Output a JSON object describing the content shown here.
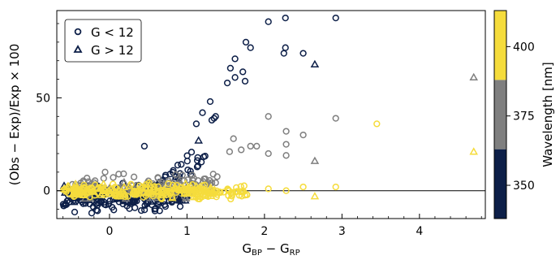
{
  "chart_data": {
    "type": "scatter",
    "xlabel": "G",
    "xlabel_parts": {
      "a": "BP",
      "minus": " − G",
      "b": "RP"
    },
    "ylabel": "(Obs − Exp)/Exp × 100",
    "xlim": [
      -0.68,
      4.85
    ],
    "ylim": [
      -15,
      97
    ],
    "xticks": [
      0,
      1,
      2,
      3,
      4
    ],
    "yticks": [
      0,
      50
    ],
    "hline": 0,
    "grid": false,
    "legend_position": "top-left",
    "series": [
      {
        "name": "G < 12",
        "marker": "circle"
      },
      {
        "name": "G > 12",
        "marker": "triangle"
      }
    ],
    "colorbar": {
      "label": "Wavelength [nm]",
      "bands": [
        {
          "from": 338,
          "to": 363,
          "color": "#0d1f48"
        },
        {
          "from": 363,
          "to": 388,
          "color": "#7f7f7f"
        },
        {
          "from": 388,
          "to": 413,
          "color": "#f5dc3c"
        }
      ],
      "range": [
        338,
        413
      ],
      "ticks": [
        350,
        375,
        400
      ]
    },
    "highlight_points": [
      {
        "x": 2.05,
        "y": 91,
        "marker": "circle",
        "band": 0
      },
      {
        "x": 2.27,
        "y": 93,
        "marker": "circle",
        "band": 0
      },
      {
        "x": 2.92,
        "y": 93,
        "marker": "circle",
        "band": 0
      },
      {
        "x": 1.76,
        "y": 80,
        "marker": "circle",
        "band": 0
      },
      {
        "x": 1.82,
        "y": 77,
        "marker": "circle",
        "band": 0
      },
      {
        "x": 1.62,
        "y": 71,
        "marker": "circle",
        "band": 0
      },
      {
        "x": 2.27,
        "y": 77,
        "marker": "circle",
        "band": 0
      },
      {
        "x": 2.25,
        "y": 74,
        "marker": "circle",
        "band": 0
      },
      {
        "x": 2.5,
        "y": 74,
        "marker": "circle",
        "band": 0
      },
      {
        "x": 1.56,
        "y": 66,
        "marker": "circle",
        "band": 0
      },
      {
        "x": 1.62,
        "y": 61,
        "marker": "circle",
        "band": 0
      },
      {
        "x": 1.72,
        "y": 64,
        "marker": "circle",
        "band": 0
      },
      {
        "x": 1.52,
        "y": 58,
        "marker": "circle",
        "band": 0
      },
      {
        "x": 1.75,
        "y": 59,
        "marker": "circle",
        "band": 0
      },
      {
        "x": 2.65,
        "y": 68,
        "marker": "triangle",
        "band": 0
      },
      {
        "x": 1.3,
        "y": 48,
        "marker": "circle",
        "band": 0
      },
      {
        "x": 1.2,
        "y": 42,
        "marker": "circle",
        "band": 0
      },
      {
        "x": 1.37,
        "y": 40,
        "marker": "circle",
        "band": 0
      },
      {
        "x": 1.35,
        "y": 39,
        "marker": "circle",
        "band": 0
      },
      {
        "x": 1.32,
        "y": 38,
        "marker": "circle",
        "band": 0
      },
      {
        "x": 1.12,
        "y": 36,
        "marker": "circle",
        "band": 0
      },
      {
        "x": 0.45,
        "y": 24,
        "marker": "circle",
        "band": 0
      },
      {
        "x": 1.15,
        "y": 27,
        "marker": "triangle",
        "band": 0
      },
      {
        "x": 4.7,
        "y": 61,
        "marker": "triangle",
        "band": 1
      },
      {
        "x": 2.05,
        "y": 40,
        "marker": "circle",
        "band": 1
      },
      {
        "x": 2.92,
        "y": 39,
        "marker": "circle",
        "band": 1
      },
      {
        "x": 2.28,
        "y": 32,
        "marker": "circle",
        "band": 1
      },
      {
        "x": 2.5,
        "y": 30,
        "marker": "circle",
        "band": 1
      },
      {
        "x": 1.6,
        "y": 28,
        "marker": "circle",
        "band": 1
      },
      {
        "x": 2.28,
        "y": 25,
        "marker": "circle",
        "band": 1
      },
      {
        "x": 1.82,
        "y": 24,
        "marker": "circle",
        "band": 1
      },
      {
        "x": 1.9,
        "y": 24,
        "marker": "circle",
        "band": 1
      },
      {
        "x": 1.7,
        "y": 22,
        "marker": "circle",
        "band": 1
      },
      {
        "x": 1.55,
        "y": 21,
        "marker": "circle",
        "band": 1
      },
      {
        "x": 2.05,
        "y": 20,
        "marker": "circle",
        "band": 1
      },
      {
        "x": 2.28,
        "y": 19,
        "marker": "circle",
        "band": 1
      },
      {
        "x": 2.65,
        "y": 16,
        "marker": "triangle",
        "band": 1
      },
      {
        "x": 3.45,
        "y": 36,
        "marker": "circle",
        "band": 2
      },
      {
        "x": 4.7,
        "y": 21,
        "marker": "triangle",
        "band": 2
      },
      {
        "x": 2.92,
        "y": 2,
        "marker": "circle",
        "band": 2
      },
      {
        "x": 2.5,
        "y": 2,
        "marker": "circle",
        "band": 2
      },
      {
        "x": 2.05,
        "y": 1,
        "marker": "circle",
        "band": 2
      },
      {
        "x": 2.28,
        "y": 0,
        "marker": "circle",
        "band": 2
      },
      {
        "x": 2.65,
        "y": -3,
        "marker": "triangle",
        "band": 2
      }
    ],
    "cluster_points": [
      {
        "marker": "circle",
        "band": 0,
        "count": 190,
        "xmin": -0.6,
        "xmax": 0.95,
        "ymin": -14,
        "ymax": 6
      },
      {
        "marker": "circle",
        "band": 0,
        "count": 38,
        "xmin": 0.5,
        "xmax": 1.25,
        "ymin": 0,
        "ymax": 30
      },
      {
        "marker": "triangle",
        "band": 0,
        "count": 65,
        "xmin": -0.6,
        "xmax": 1.1,
        "ymin": -9,
        "ymax": 6
      },
      {
        "marker": "circle",
        "band": 1,
        "count": 95,
        "xmin": -0.55,
        "xmax": 1.4,
        "ymin": -5,
        "ymax": 12
      },
      {
        "marker": "triangle",
        "band": 1,
        "count": 35,
        "xmin": -0.55,
        "xmax": 1.2,
        "ymin": -6,
        "ymax": 7
      },
      {
        "marker": "circle",
        "band": 2,
        "count": 170,
        "xmin": -0.6,
        "xmax": 1.8,
        "ymin": -6,
        "ymax": 5
      },
      {
        "marker": "triangle",
        "band": 2,
        "count": 90,
        "xmin": -0.6,
        "xmax": 1.4,
        "ymin": -6,
        "ymax": 5
      }
    ]
  }
}
